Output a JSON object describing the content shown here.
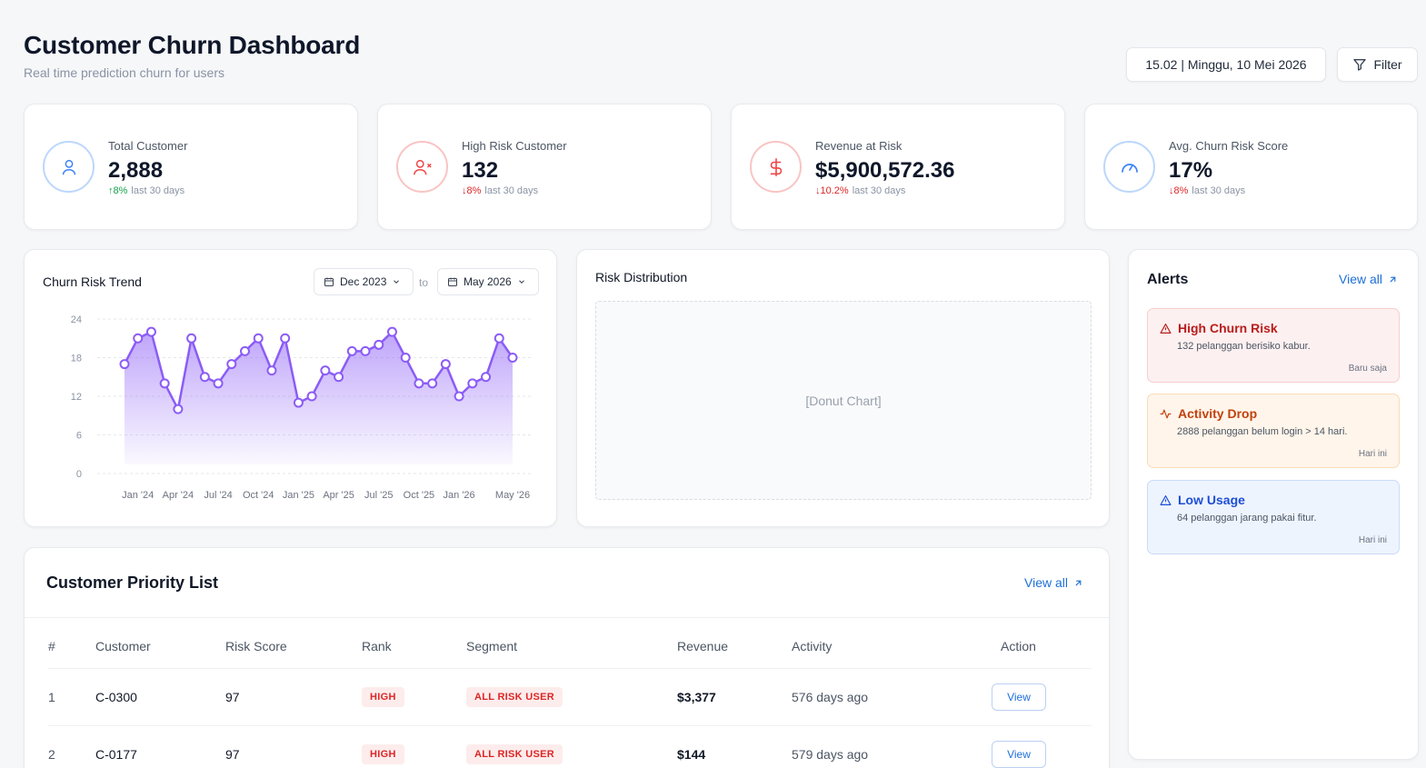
{
  "header": {
    "title": "Customer Churn Dashboard",
    "subtitle": "Real time prediction churn for users",
    "datetime": "15.02 | Minggu, 10 Mei 2026",
    "filter_label": "Filter"
  },
  "kpis": [
    {
      "label": "Total Customer",
      "value": "2,888",
      "delta": "8%",
      "delta_dir": "up",
      "period": "last 30 days",
      "icon": "user-icon",
      "color": "#3b82f6"
    },
    {
      "label": "High Risk Customer",
      "value": "132",
      "delta": "8%",
      "delta_dir": "down",
      "period": "last 30 days",
      "icon": "user-x-icon",
      "color": "#ef4444"
    },
    {
      "label": "Revenue at Risk",
      "value": "$5,900,572.36",
      "delta": "10.2%",
      "delta_dir": "down",
      "period": "last 30 days",
      "icon": "dollar-icon",
      "color": "#ef4444"
    },
    {
      "label": "Avg. Churn Risk Score",
      "value": "17%",
      "delta": "8%",
      "delta_dir": "down",
      "period": "last 30 days",
      "icon": "gauge-icon",
      "color": "#3b82f6"
    }
  ],
  "trend": {
    "title": "Churn Risk Trend",
    "from": "Dec 2023",
    "to_label": "to",
    "to": "May 2026"
  },
  "chart_data": {
    "type": "area",
    "x": [
      "Dec '23",
      "Jan '24",
      "Feb '24",
      "Mar '24",
      "Apr '24",
      "May '24",
      "Jun '24",
      "Jul '24",
      "Aug '24",
      "Sep '24",
      "Oct '24",
      "Nov '24",
      "Dec '24",
      "Jan '25",
      "Feb '25",
      "Mar '25",
      "Apr '25",
      "May '25",
      "Jun '25",
      "Jul '25",
      "Aug '25",
      "Sep '25",
      "Oct '25",
      "Nov '25",
      "Dec '25",
      "Jan '26",
      "Feb '26",
      "Mar '26",
      "Apr '26",
      "May '26"
    ],
    "values": [
      17,
      21,
      22,
      14,
      10,
      21,
      15,
      14,
      17,
      19,
      21,
      16,
      21,
      11,
      12,
      16,
      15,
      19,
      19,
      20,
      22,
      18,
      14,
      14,
      17,
      12,
      14,
      15,
      21,
      18
    ],
    "tick_labels": [
      "Jan '24",
      "Apr '24",
      "Jul '24",
      "Oct '24",
      "Jan '25",
      "Apr '25",
      "Jul '25",
      "Oct '25",
      "Jan '26",
      "May '26"
    ],
    "tick_indices": [
      1,
      4,
      7,
      10,
      13,
      16,
      19,
      22,
      25,
      29
    ],
    "yticks": [
      0,
      6,
      12,
      18,
      24
    ],
    "ylim": [
      0,
      24
    ],
    "grid": true,
    "color": "#8b5cf6"
  },
  "distribution": {
    "title": "Risk Distribution",
    "placeholder": "[Donut Chart]"
  },
  "alerts": {
    "title": "Alerts",
    "view_all": "View all",
    "items": [
      {
        "title": "High Churn Risk",
        "message": "132 pelanggan berisiko kabur.",
        "time": "Baru saja",
        "icon": "alert-triangle-icon",
        "bg": "#fdf0f0",
        "border": "#f6cfcf",
        "color": "#b91c1c"
      },
      {
        "title": "Activity Drop",
        "message": "2888 pelanggan belum login > 14 hari.",
        "time": "Hari ini",
        "icon": "activity-icon",
        "bg": "#fff5ea",
        "border": "#f9dcb8",
        "color": "#c2410c"
      },
      {
        "title": "Low Usage",
        "message": "64 pelanggan jarang pakai fitur.",
        "time": "Hari ini",
        "icon": "alert-triangle-icon",
        "bg": "#eef4fe",
        "border": "#c9dbf8",
        "color": "#1d4ed8"
      }
    ]
  },
  "priority": {
    "title": "Customer Priority List",
    "view_all": "View all",
    "columns": [
      "#",
      "Customer",
      "Risk Score",
      "Rank",
      "Segment",
      "Revenue",
      "Activity",
      "Action"
    ],
    "rows": [
      {
        "n": "1",
        "customer": "C-0300",
        "score": "97",
        "rank": "HIGH",
        "segment": "ALL RISK USER",
        "revenue": "$3,377",
        "activity": "576 days ago",
        "action": "View"
      },
      {
        "n": "2",
        "customer": "C-0177",
        "score": "97",
        "rank": "HIGH",
        "segment": "ALL RISK USER",
        "revenue": "$144",
        "activity": "579 days ago",
        "action": "View"
      }
    ]
  }
}
